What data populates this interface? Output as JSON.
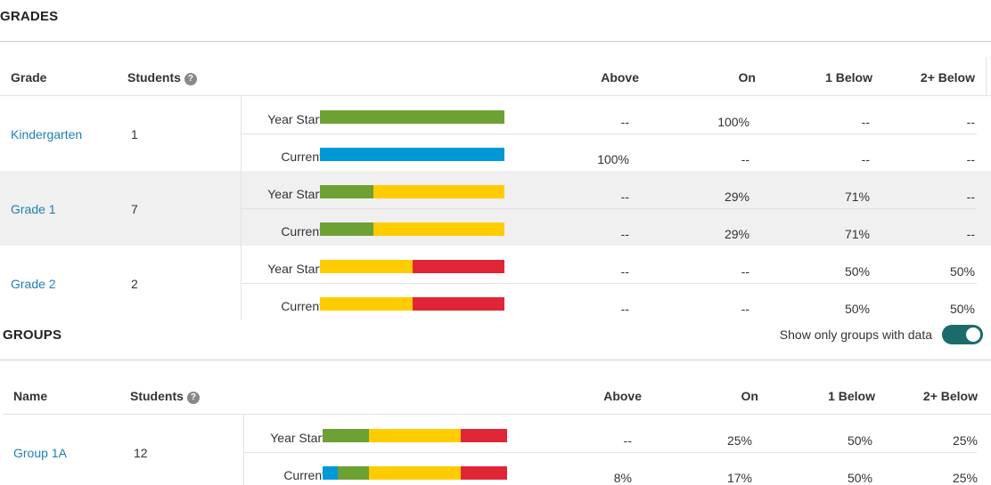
{
  "colors": {
    "above": "#0099d8",
    "on": "#6da134",
    "one_below": "#ffcc00",
    "two_below": "#e02636"
  },
  "grades": {
    "title": "GRADES",
    "headers": {
      "grade": "Grade",
      "students": "Students",
      "help": "?",
      "above": "Above",
      "on": "On",
      "one_below": "1 Below",
      "two_below": "2+ Below"
    },
    "rows": [
      {
        "name": "Kindergarten",
        "students": "1",
        "year_start": {
          "label": "Year Start",
          "above": "--",
          "on": "100%",
          "one_below": "--",
          "two_below": "--",
          "mix": [
            0,
            1,
            0,
            0
          ]
        },
        "current": {
          "label": "Current",
          "above": "100%",
          "on": "--",
          "one_below": "--",
          "two_below": "--",
          "mix": [
            1,
            0,
            0,
            0
          ]
        }
      },
      {
        "name": "Grade 1",
        "students": "7",
        "year_start": {
          "label": "Year Start",
          "above": "--",
          "on": "29%",
          "one_below": "71%",
          "two_below": "--",
          "mix": [
            0,
            0.29,
            0.71,
            0
          ]
        },
        "current": {
          "label": "Current",
          "above": "--",
          "on": "29%",
          "one_below": "71%",
          "two_below": "--",
          "mix": [
            0,
            0.29,
            0.71,
            0
          ]
        }
      },
      {
        "name": "Grade 2",
        "students": "2",
        "year_start": {
          "label": "Year Start",
          "above": "--",
          "on": "--",
          "one_below": "50%",
          "two_below": "50%",
          "mix": [
            0,
            0,
            0.5,
            0.5
          ]
        },
        "current": {
          "label": "Current",
          "above": "--",
          "on": "--",
          "one_below": "50%",
          "two_below": "50%",
          "mix": [
            0,
            0,
            0.5,
            0.5
          ]
        }
      }
    ]
  },
  "groups": {
    "title": "GROUPS",
    "toggle_label": "Show only groups with data",
    "toggle_on": true,
    "headers": {
      "name": "Name",
      "students": "Students",
      "help": "?",
      "above": "Above",
      "on": "On",
      "one_below": "1 Below",
      "two_below": "2+ Below"
    },
    "rows": [
      {
        "name": "Group 1A",
        "students": "12",
        "year_start": {
          "label": "Year Start",
          "above": "--",
          "on": "25%",
          "one_below": "50%",
          "two_below": "25%",
          "mix": [
            0,
            0.25,
            0.5,
            0.25
          ]
        },
        "current": {
          "label": "Current",
          "above": "8%",
          "on": "17%",
          "one_below": "50%",
          "two_below": "25%",
          "mix": [
            0.08,
            0.17,
            0.5,
            0.25
          ]
        }
      }
    ]
  }
}
